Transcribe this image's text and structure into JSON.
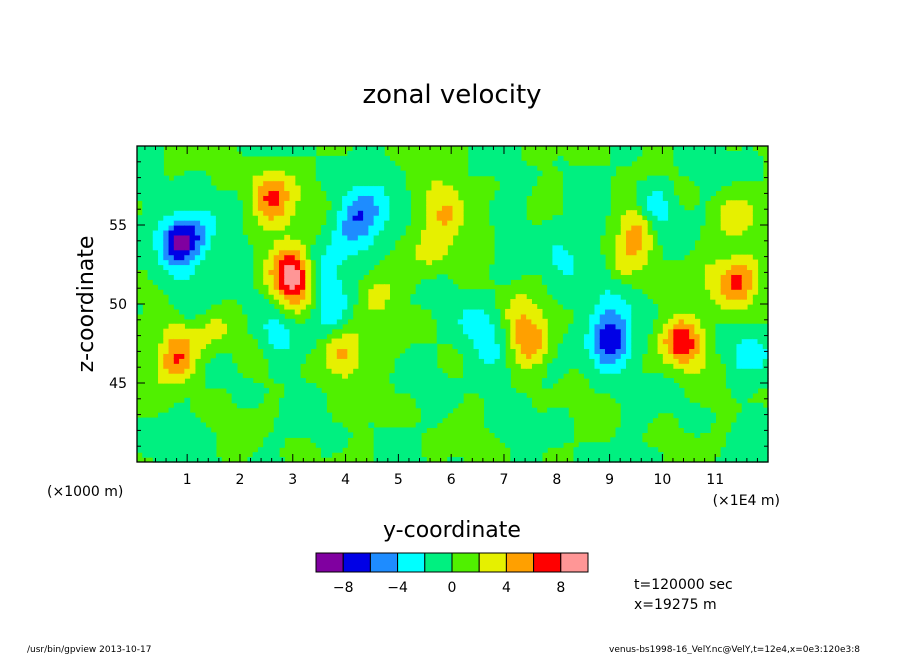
{
  "chart_data": {
    "type": "heatmap",
    "title": "zonal velocity",
    "xlabel": "y-coordinate",
    "ylabel": "z-coordinate",
    "x_unit_left": "(×1000 m)",
    "x_unit_right": "(×1E4 m)",
    "x_ticks": [
      "1",
      "2",
      "3",
      "4",
      "5",
      "6",
      "7",
      "8",
      "9",
      "10",
      "11"
    ],
    "x_tick_values": [
      1,
      2,
      3,
      4,
      5,
      6,
      7,
      8,
      9,
      10,
      11
    ],
    "y_ticks": [
      "45",
      "50",
      "55"
    ],
    "y_tick_values": [
      45,
      50,
      55
    ],
    "xlim": [
      0.05,
      12.0
    ],
    "ylim": [
      40.0,
      60.0
    ],
    "colorbar": {
      "colors": [
        "#8000a0",
        "#0000e6",
        "#1e8cff",
        "#00ffff",
        "#00f080",
        "#50f000",
        "#e6f000",
        "#ffa000",
        "#ff0000",
        "#ff9696"
      ],
      "tick_labels": [
        "−8",
        "−4",
        "0",
        "4",
        "8"
      ],
      "tick_values": [
        -8,
        -4,
        0,
        4,
        8
      ],
      "min": -10,
      "max": 10
    },
    "features": [
      {
        "y": 0.9,
        "z": 54.0,
        "value": -6.5
      },
      {
        "y": 1.2,
        "z": 54.8,
        "value": -3.2
      },
      {
        "y": 0.7,
        "z": 53.8,
        "value": -2.5
      },
      {
        "y": 0.9,
        "z": 48.5,
        "value": 2.5
      },
      {
        "y": 0.8,
        "z": 46.5,
        "value": 6.0
      },
      {
        "y": 0.95,
        "z": 49.7,
        "value": -3.2
      },
      {
        "y": 1.5,
        "z": 48.5,
        "value": 2.5
      },
      {
        "y": 2.55,
        "z": 57.0,
        "value": 5.5
      },
      {
        "y": 2.7,
        "z": 55.5,
        "value": 2.5
      },
      {
        "y": 3.0,
        "z": 52.0,
        "value": 8.5
      },
      {
        "y": 3.1,
        "z": 50.5,
        "value": 2.5
      },
      {
        "y": 2.7,
        "z": 48.0,
        "value": -3.2
      },
      {
        "y": 3.55,
        "z": 52.0,
        "value": -3.0
      },
      {
        "y": 3.8,
        "z": 49.8,
        "value": -3.0
      },
      {
        "y": 3.95,
        "z": 47.0,
        "value": 5.0
      },
      {
        "y": 4.3,
        "z": 56.0,
        "value": -4.5
      },
      {
        "y": 4.1,
        "z": 54.5,
        "value": -2.5
      },
      {
        "y": 4.7,
        "z": 55.0,
        "value": -2.0
      },
      {
        "y": 4.6,
        "z": 51.0,
        "value": 2.5
      },
      {
        "y": 5.65,
        "z": 53.5,
        "value": 2.5
      },
      {
        "y": 5.9,
        "z": 56.0,
        "value": 4.5
      },
      {
        "y": 6.6,
        "z": 54.5,
        "value": 2.5
      },
      {
        "y": 6.6,
        "z": 48.5,
        "value": -3.5
      },
      {
        "y": 6.85,
        "z": 46.5,
        "value": -2.5
      },
      {
        "y": 7.3,
        "z": 49.0,
        "value": 3.0
      },
      {
        "y": 7.5,
        "z": 47.5,
        "value": 5.5
      },
      {
        "y": 7.2,
        "z": 53.0,
        "value": -2.0
      },
      {
        "y": 7.05,
        "z": 55.5,
        "value": -2.0
      },
      {
        "y": 8.1,
        "z": 53.5,
        "value": -2.0
      },
      {
        "y": 8.85,
        "z": 51.5,
        "value": -2.0
      },
      {
        "y": 9.0,
        "z": 47.5,
        "value": -7.0
      },
      {
        "y": 9.1,
        "z": 49.0,
        "value": -3.5
      },
      {
        "y": 9.55,
        "z": 55.0,
        "value": 5.0
      },
      {
        "y": 9.85,
        "z": 56.0,
        "value": -4.5
      },
      {
        "y": 10.25,
        "z": 48.0,
        "value": 3.5
      },
      {
        "y": 10.45,
        "z": 47.5,
        "value": 5.0
      },
      {
        "y": 9.25,
        "z": 52.5,
        "value": 2.5
      },
      {
        "y": 11.45,
        "z": 51.5,
        "value": 6.0
      },
      {
        "y": 11.3,
        "z": 55.5,
        "value": 3.0
      },
      {
        "y": 11.6,
        "z": 47.0,
        "value": -3.0
      },
      {
        "y": 10.8,
        "z": 52.0,
        "value": 2.0
      }
    ]
  },
  "annotations": {
    "time": "t=120000 sec",
    "position": "x=19275 m",
    "footer_left": "/usr/bin/gpview  2013-10-17",
    "footer_right": "venus-bs1998-16_VelY.nc@VelY,t=12e4,x=0e3:120e3:8"
  }
}
